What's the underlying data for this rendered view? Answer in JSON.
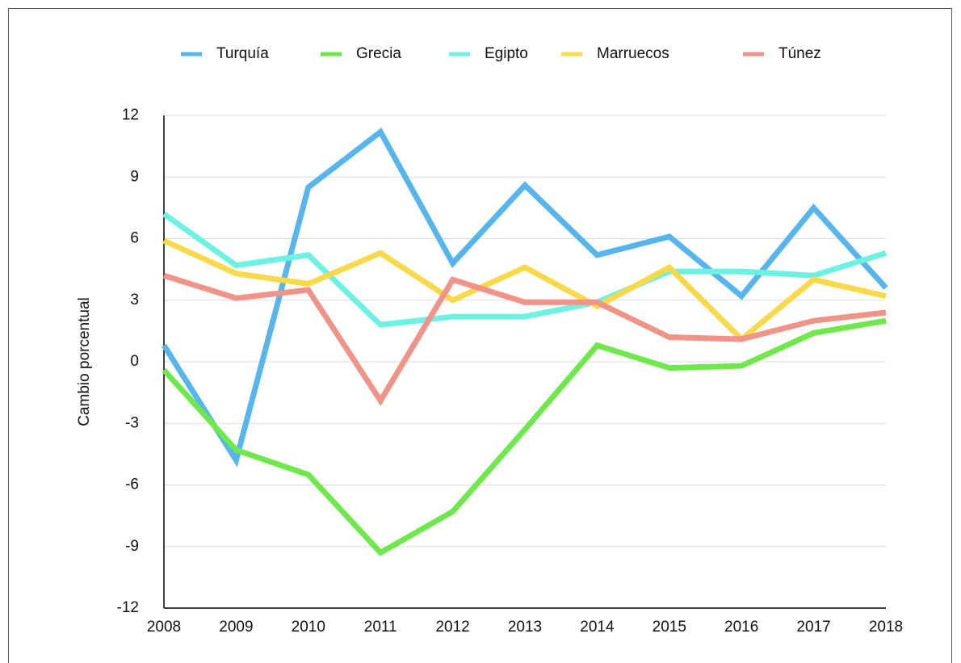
{
  "chart_data": {
    "type": "line",
    "categories": [
      "2008",
      "2009",
      "2010",
      "2011",
      "2012",
      "2013",
      "2014",
      "2015",
      "2016",
      "2017",
      "2018"
    ],
    "y_axis_label": "Cambio porcentual",
    "ylim": [
      -12,
      12
    ],
    "yticks": [
      -12,
      -9,
      -6,
      -3,
      0,
      3,
      6,
      9,
      12
    ],
    "grid": true,
    "legend": "top",
    "series": [
      {
        "name": "Turquía",
        "color": "#55b5ec",
        "values": [
          0.8,
          -4.8,
          8.5,
          11.2,
          4.8,
          8.6,
          5.2,
          6.1,
          3.2,
          7.5,
          3.6
        ]
      },
      {
        "name": "Grecia",
        "color": "#6ee84a",
        "values": [
          -0.4,
          -4.3,
          -5.5,
          -9.3,
          -7.3,
          -3.3,
          0.8,
          -0.3,
          -0.2,
          1.4,
          2.0
        ]
      },
      {
        "name": "Egipto",
        "color": "#6cf2e2",
        "values": [
          7.2,
          4.7,
          5.2,
          1.8,
          2.2,
          2.2,
          2.9,
          4.4,
          4.4,
          4.2,
          5.3
        ]
      },
      {
        "name": "Marruecos",
        "color": "#f8d94a",
        "values": [
          5.9,
          4.3,
          3.8,
          5.3,
          3.0,
          4.6,
          2.7,
          4.6,
          1.1,
          4.0,
          3.2
        ]
      },
      {
        "name": "Túnez",
        "color": "#f0948a",
        "values": [
          4.2,
          3.1,
          3.5,
          -1.9,
          4.0,
          2.9,
          2.9,
          1.2,
          1.1,
          2.0,
          2.4
        ]
      }
    ]
  }
}
